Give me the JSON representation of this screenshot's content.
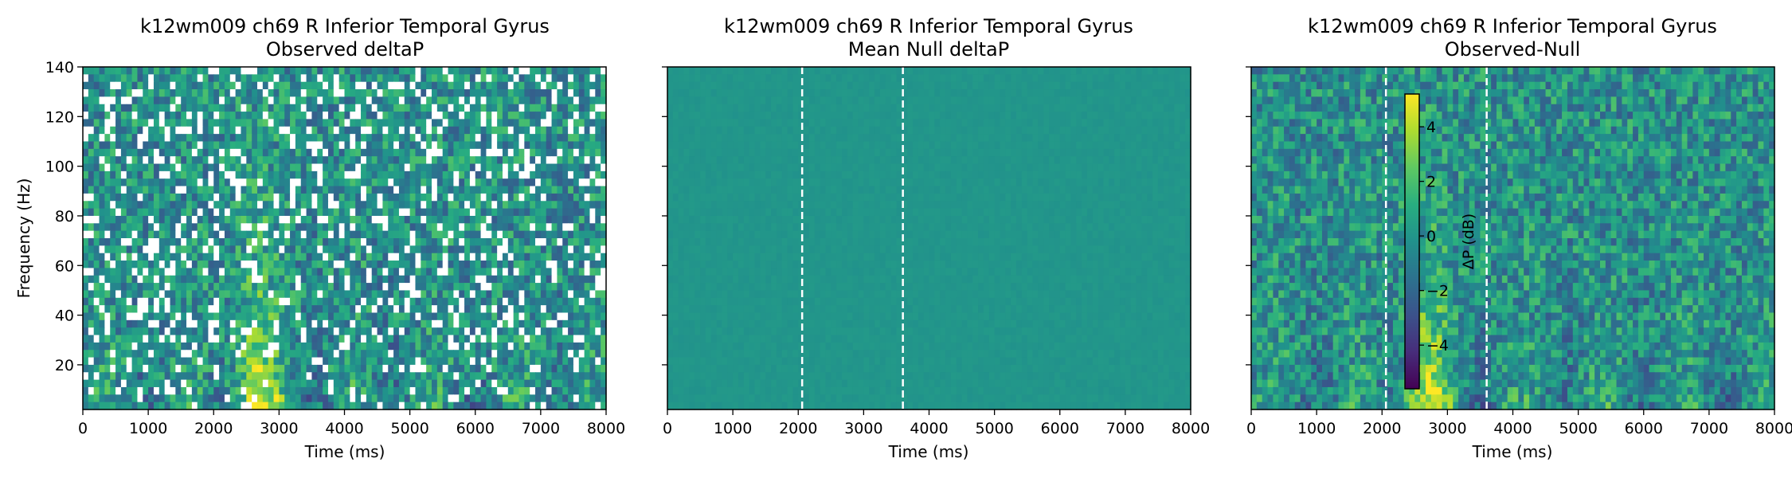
{
  "figure": {
    "panels": [
      {
        "title_line1": "k12wm009 ch69 R Inferior Temporal Gyrus",
        "title_line2": "Observed deltaP"
      },
      {
        "title_line1": "k12wm009 ch69 R Inferior Temporal Gyrus",
        "title_line2": "Mean Null deltaP"
      },
      {
        "title_line1": "k12wm009 ch69 R Inferior Temporal Gyrus",
        "title_line2": "Observed-Null"
      }
    ],
    "xlabel": "Time (ms)",
    "ylabel": "Frequency (Hz)",
    "colorbar_label": "ΔP (dB)"
  },
  "chart_data": [
    {
      "type": "heatmap",
      "title": "k12wm009 ch69 R Inferior Temporal Gyrus / Observed deltaP",
      "xlabel": "Time (ms)",
      "ylabel": "Frequency (Hz)",
      "xlim": [
        0,
        8000
      ],
      "ylim": [
        2,
        140
      ],
      "xticks": [
        "0",
        "1000",
        "2000",
        "3000",
        "4000",
        "5000",
        "6000",
        "7000",
        "8000"
      ],
      "yticks": [
        "20",
        "40",
        "60",
        "80",
        "100",
        "120",
        "140"
      ],
      "colormap": "viridis",
      "masked_cells": "white",
      "vlines_ms": []
    },
    {
      "type": "heatmap",
      "title": "k12wm009 ch69 R Inferior Temporal Gyrus / Mean Null deltaP",
      "xlabel": "Time (ms)",
      "xlim": [
        0,
        8000
      ],
      "ylim": [
        2,
        140
      ],
      "xticks": [
        "0",
        "1000",
        "2000",
        "3000",
        "4000",
        "5000",
        "6000",
        "7000",
        "8000"
      ],
      "colormap": "viridis",
      "vlines_ms": [
        2060,
        3600
      ]
    },
    {
      "type": "heatmap",
      "title": "k12wm009 ch69 R Inferior Temporal Gyrus / Observed-Null",
      "xlabel": "Time (ms)",
      "xlim": [
        0,
        8000
      ],
      "ylim": [
        2,
        140
      ],
      "xticks": [
        "0",
        "1000",
        "2000",
        "3000",
        "4000",
        "5000",
        "6000",
        "7000",
        "8000"
      ],
      "colormap": "viridis",
      "vlines_ms": [
        2060,
        3600
      ],
      "colorbar": {
        "label": "ΔP (dB)",
        "range": [
          -5.6,
          5.2
        ],
        "ticks": [
          "−4",
          "−2",
          "0",
          "2",
          "4"
        ],
        "tick_values": [
          -4,
          -2,
          0,
          2,
          4
        ]
      }
    }
  ]
}
